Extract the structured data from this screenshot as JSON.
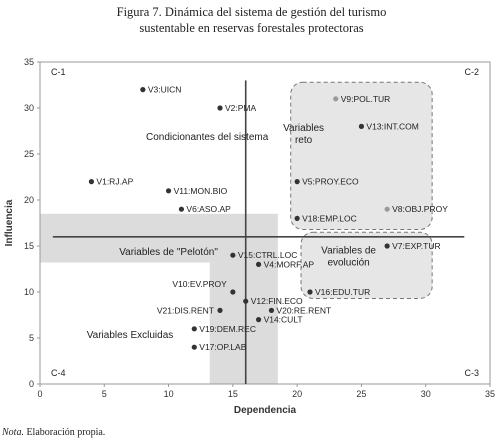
{
  "figure": {
    "title_line1": "Figura 7. Dinámica del sistema de gestión del turismo",
    "title_line2": "sustentable en reservas forestales protectoras",
    "note_label": "Nota.",
    "note_text": " Elaboración propia."
  },
  "chart_data": {
    "type": "scatter",
    "xlabel": "Dependencia",
    "ylabel": "Influencia",
    "xlim": [
      0,
      35
    ],
    "ylim": [
      0,
      35
    ],
    "xticks": [
      0,
      5,
      10,
      15,
      20,
      25,
      30,
      35
    ],
    "yticks": [
      0,
      5,
      10,
      15,
      20,
      25,
      30,
      35
    ],
    "grid": false,
    "reference_lines": {
      "x": 16,
      "y": 16
    },
    "quadrant_labels": [
      "C-1",
      "C-2",
      "C-3",
      "C-4"
    ],
    "regions": [
      {
        "name": "Condicionantes del sistema",
        "label_at": [
          13,
          26.5
        ]
      },
      {
        "name": "Variables\nreto",
        "label_at": [
          20.5,
          27.5
        ]
      },
      {
        "name": "Variables de \"Pelotón\"",
        "label_at": [
          10,
          14
        ]
      },
      {
        "name": "Variables de\nevolución",
        "label_at": [
          24,
          14.2
        ]
      },
      {
        "name": "Variables Excluidas",
        "label_at": [
          7,
          5
        ]
      }
    ],
    "points": [
      {
        "label": "V1:RJ.AP",
        "x": 4,
        "y": 22
      },
      {
        "label": "V2:PMA",
        "x": 14,
        "y": 30
      },
      {
        "label": "V3:UICN",
        "x": 8,
        "y": 32
      },
      {
        "label": "V4:MORF.AP",
        "x": 17,
        "y": 13
      },
      {
        "label": "V5:PROY.ECO",
        "x": 20,
        "y": 22
      },
      {
        "label": "V6:ASO.AP",
        "x": 11,
        "y": 19
      },
      {
        "label": "V7:EXP.TUR",
        "x": 27,
        "y": 15
      },
      {
        "label": "V8:OBJ.PROY",
        "x": 27,
        "y": 19
      },
      {
        "label": "V9:POL.TUR",
        "x": 23,
        "y": 31
      },
      {
        "label": "V10:EV.PROY",
        "x": 15,
        "y": 10
      },
      {
        "label": "V11:MON.BIO",
        "x": 10,
        "y": 21
      },
      {
        "label": "V12:FIN.ECO",
        "x": 16,
        "y": 9
      },
      {
        "label": "V13:INT.COM",
        "x": 25,
        "y": 28
      },
      {
        "label": "V14:CULT",
        "x": 17,
        "y": 7
      },
      {
        "label": "V15:CTRL.LOC",
        "x": 15,
        "y": 14
      },
      {
        "label": "V16:EDU.TUR",
        "x": 21,
        "y": 10
      },
      {
        "label": "V17:OP.LAB",
        "x": 12,
        "y": 4
      },
      {
        "label": "V18:EMP.LOC",
        "x": 20,
        "y": 18
      },
      {
        "label": "V19:DEM.REC",
        "x": 12,
        "y": 6
      },
      {
        "label": "V20:RE.RENT",
        "x": 18,
        "y": 8
      },
      {
        "label": "V21:DIS.RENT",
        "x": 14,
        "y": 8
      }
    ]
  }
}
